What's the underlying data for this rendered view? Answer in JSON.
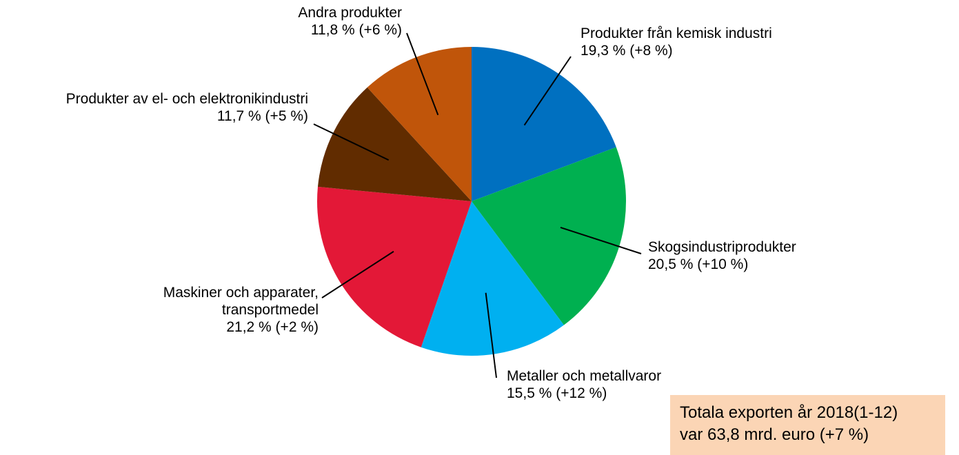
{
  "chart_data": {
    "type": "pie",
    "categories": [
      "Produkter från kemisk industri",
      "Skogsindustriprodukter",
      "Metaller och metallvaror",
      "Maskiner och apparater,\ntransportmedel",
      "Produkter av el- och elektronikindustri",
      "Andra produkter"
    ],
    "values": [
      19.3,
      20.5,
      15.5,
      21.2,
      11.7,
      11.8
    ],
    "value_labels": [
      "19,3 % (+8 %)",
      "20,5 % (+10 %)",
      "15,5 % (+12 %)",
      "21,2 % (+2 %)",
      "11,7 % (+5 %)",
      "11,8 % (+6 %)"
    ],
    "colors": [
      "#0070c0",
      "#00b050",
      "#00b0f0",
      "#e31837",
      "#612c00",
      "#c0550a"
    ],
    "annotation": "Totala exporten år 2018(1-12)\nvar 63,8 mrd. euro (+7 %)"
  }
}
